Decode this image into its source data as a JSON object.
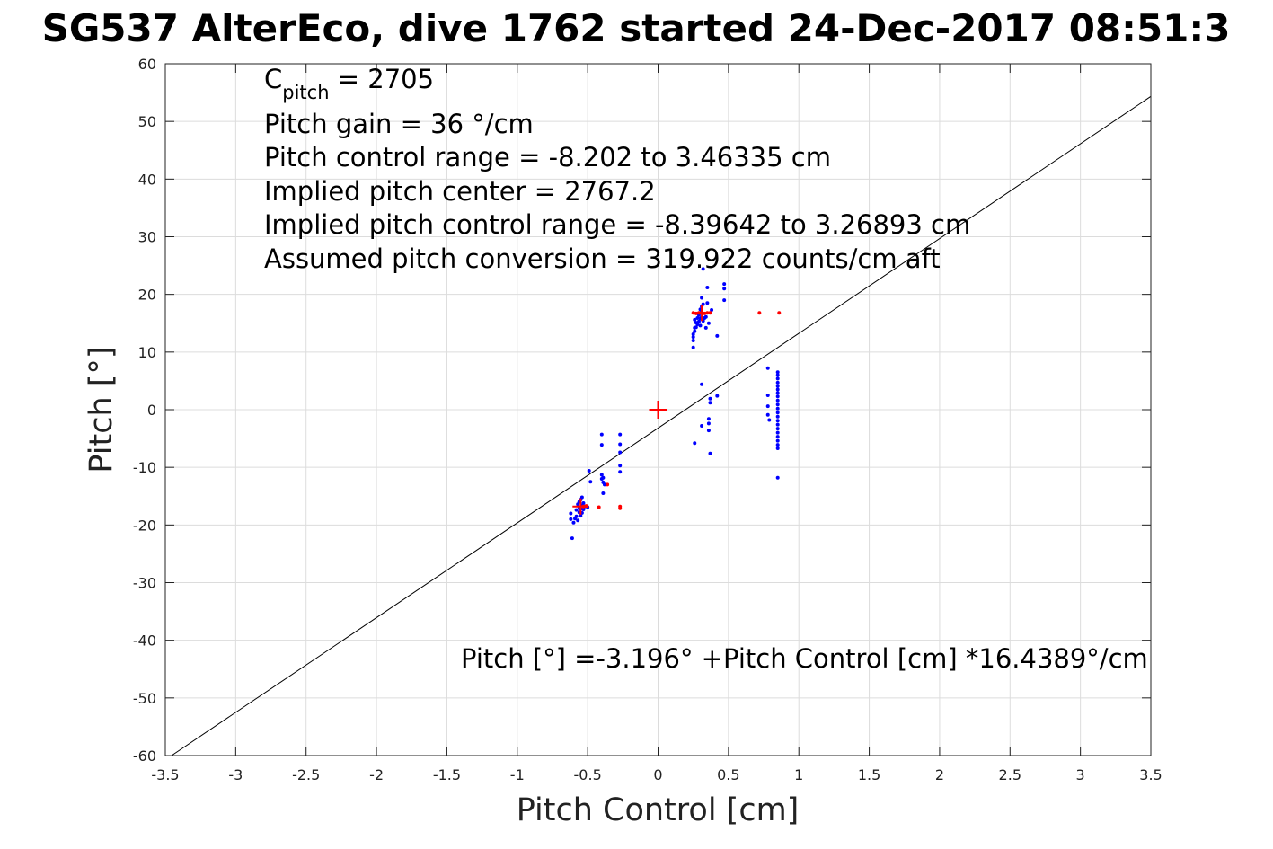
{
  "title": "SG537 AlterEco, dive 1762 started 24-Dec-2017 08:51:3",
  "annotations": {
    "c_pitch_symbol": "C",
    "c_pitch_sub": "pitch",
    "c_pitch_value": " = 2705",
    "lines": [
      "Pitch gain = 36 °/cm",
      "Pitch control range = -8.202 to 3.46335 cm",
      "Implied pitch center = 2767.2",
      "Implied pitch control range = -8.39642 to 3.26893 cm",
      "Assumed pitch conversion = 319.922 counts/cm aft"
    ],
    "equation": "Pitch [°] =-3.196° +Pitch Control [cm] *16.4389°/cm"
  },
  "colors": {
    "blue_points": "#0000ff",
    "red_points": "#ff0000",
    "fit_line": "#000000"
  },
  "chart_data": {
    "type": "scatter",
    "xlabel": "Pitch Control [cm]",
    "ylabel": "Pitch [°]",
    "xlim": [
      -3.5,
      3.5
    ],
    "ylim": [
      -60,
      60
    ],
    "xticks": [
      -3.5,
      -3,
      -2.5,
      -2,
      -1.5,
      -1,
      -0.5,
      0,
      0.5,
      1,
      1.5,
      2,
      2.5,
      3,
      3.5
    ],
    "yticks": [
      -60,
      -50,
      -40,
      -30,
      -20,
      -10,
      0,
      10,
      20,
      30,
      40,
      50,
      60
    ],
    "grid": true,
    "fit_line": {
      "intercept": -3.196,
      "slope": 16.4389
    },
    "center_marker": {
      "x": 0,
      "y": 0
    },
    "series": [
      {
        "points": [
          [
            -0.61,
            -22.3
          ],
          [
            -0.62,
            -19.0
          ],
          [
            -0.62,
            -18.0
          ],
          [
            -0.6,
            -19.6
          ],
          [
            -0.59,
            -18.9
          ],
          [
            -0.58,
            -18.5
          ],
          [
            -0.58,
            -17.4
          ],
          [
            -0.57,
            -19.2
          ],
          [
            -0.57,
            -16.4
          ],
          [
            -0.56,
            -17.8
          ],
          [
            -0.56,
            -16.9
          ],
          [
            -0.56,
            -16.0
          ],
          [
            -0.55,
            -18.4
          ],
          [
            -0.55,
            -17.2
          ],
          [
            -0.55,
            -15.6
          ],
          [
            -0.54,
            -17.9
          ],
          [
            -0.54,
            -16.6
          ],
          [
            -0.54,
            -15.2
          ],
          [
            -0.53,
            -17.3
          ],
          [
            -0.53,
            -16.2
          ],
          [
            -0.52,
            -16.8
          ],
          [
            -0.5,
            -16.9
          ],
          [
            -0.49,
            -10.6
          ],
          [
            -0.48,
            -12.5
          ],
          [
            -0.4,
            -4.3
          ],
          [
            -0.4,
            -6.1
          ],
          [
            -0.4,
            -11.3
          ],
          [
            -0.4,
            -12.0
          ],
          [
            -0.39,
            -11.8
          ],
          [
            -0.39,
            -12.6
          ],
          [
            -0.39,
            -14.5
          ],
          [
            -0.38,
            -13.0
          ],
          [
            -0.27,
            -4.3
          ],
          [
            -0.27,
            -6.0
          ],
          [
            -0.27,
            -7.4
          ],
          [
            -0.27,
            -9.7
          ],
          [
            -0.27,
            -10.8
          ],
          [
            0.25,
            10.8
          ],
          [
            0.25,
            12.0
          ],
          [
            0.25,
            12.6
          ],
          [
            0.25,
            13.1
          ],
          [
            0.26,
            13.6
          ],
          [
            0.26,
            14.2
          ],
          [
            0.26,
            15.6
          ],
          [
            0.27,
            14.3
          ],
          [
            0.27,
            15.1
          ],
          [
            0.28,
            14.8
          ],
          [
            0.28,
            15.9
          ],
          [
            0.29,
            15.3
          ],
          [
            0.29,
            16.4
          ],
          [
            0.3,
            14.6
          ],
          [
            0.3,
            15.8
          ],
          [
            0.3,
            17.4
          ],
          [
            0.31,
            16.0
          ],
          [
            0.31,
            17.0
          ],
          [
            0.31,
            17.9
          ],
          [
            0.31,
            19.4
          ],
          [
            0.32,
            18.3
          ],
          [
            0.32,
            15.4
          ],
          [
            0.32,
            24.4
          ],
          [
            0.33,
            15.9
          ],
          [
            0.34,
            14.2
          ],
          [
            0.34,
            16.1
          ],
          [
            0.35,
            18.5
          ],
          [
            0.35,
            21.2
          ],
          [
            0.36,
            15.0
          ],
          [
            0.38,
            17.3
          ],
          [
            0.42,
            12.8
          ],
          [
            0.47,
            19.0
          ],
          [
            0.47,
            21.0
          ],
          [
            0.47,
            21.8
          ],
          [
            0.26,
            -5.8
          ],
          [
            0.31,
            4.4
          ],
          [
            0.31,
            -2.8
          ],
          [
            0.36,
            -1.6
          ],
          [
            0.36,
            -2.4
          ],
          [
            0.36,
            -3.6
          ],
          [
            0.37,
            1.2
          ],
          [
            0.37,
            1.9
          ],
          [
            0.37,
            -7.6
          ],
          [
            0.42,
            2.4
          ],
          [
            0.78,
            7.2
          ],
          [
            0.78,
            2.5
          ],
          [
            0.78,
            0.6
          ],
          [
            0.78,
            -0.9
          ],
          [
            0.79,
            -1.8
          ],
          [
            0.85,
            6.5
          ],
          [
            0.85,
            6.0
          ],
          [
            0.85,
            5.4
          ],
          [
            0.85,
            4.7
          ],
          [
            0.85,
            4.1
          ],
          [
            0.85,
            3.5
          ],
          [
            0.85,
            2.9
          ],
          [
            0.85,
            2.3
          ],
          [
            0.85,
            1.6
          ],
          [
            0.85,
            0.9
          ],
          [
            0.85,
            0.2
          ],
          [
            0.85,
            -0.5
          ],
          [
            0.85,
            -1.2
          ],
          [
            0.85,
            -1.9
          ],
          [
            0.85,
            -2.6
          ],
          [
            0.85,
            -3.3
          ],
          [
            0.85,
            -4.0
          ],
          [
            0.85,
            -4.7
          ],
          [
            0.85,
            -5.4
          ],
          [
            0.85,
            -6.1
          ],
          [
            0.85,
            -6.7
          ],
          [
            0.85,
            -11.8
          ]
        ]
      },
      {
        "points": [
          [
            -0.53,
            -16.8
          ],
          [
            -0.51,
            -16.7
          ],
          [
            -0.42,
            -16.9
          ],
          [
            -0.36,
            -13.0
          ],
          [
            -0.27,
            -16.8
          ],
          [
            -0.27,
            -17.1
          ],
          [
            0.25,
            16.8
          ],
          [
            0.27,
            16.7
          ],
          [
            0.29,
            16.8
          ],
          [
            0.31,
            16.8
          ],
          [
            0.33,
            16.7
          ],
          [
            0.35,
            16.8
          ],
          [
            0.37,
            16.8
          ],
          [
            0.72,
            16.8
          ],
          [
            0.86,
            16.8
          ]
        ]
      },
      {
        "points": [
          [
            -0.55,
            -16.8
          ],
          [
            0.31,
            16.8
          ]
        ]
      }
    ]
  }
}
